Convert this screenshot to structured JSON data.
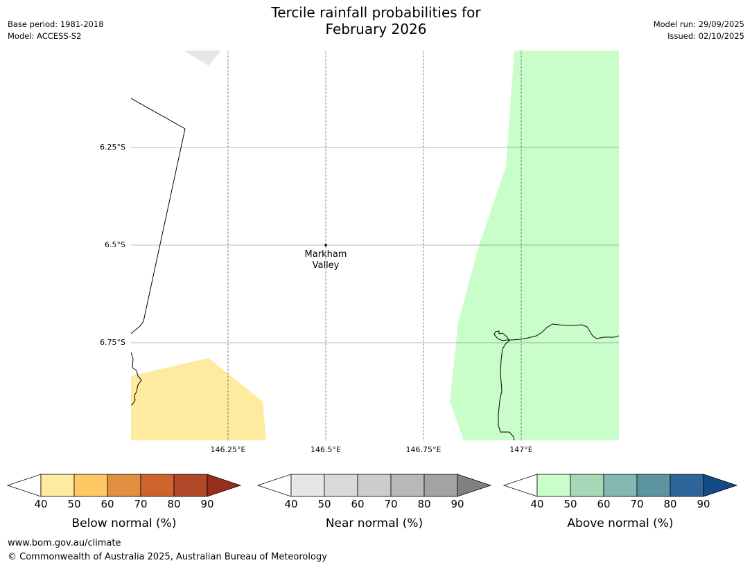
{
  "title": {
    "line1": "Tercile rainfall probabilities for",
    "line2": "February 2026"
  },
  "meta_left": {
    "base_period": "Base period: 1981-2018",
    "model": "Model: ACCESS-S2"
  },
  "meta_right": {
    "model_run": "Model run: 29/09/2025",
    "issued": "Issued: 02/10/2025"
  },
  "map": {
    "lat_ticks": [
      "6.25°S",
      "6.5°S",
      "6.75°S"
    ],
    "lon_ticks": [
      "146.25°E",
      "146.5°E",
      "146.75°E",
      "147°E"
    ],
    "place": {
      "name_line1": "Markham",
      "name_line2": "Valley"
    },
    "colors": {
      "below_normal_fill": "#feeb9f",
      "above_normal_fill": "#c9fdca",
      "near_normal_fill": "#e6e6e6"
    }
  },
  "colorbars": [
    {
      "label": "Below normal (%)",
      "ticks": [
        "40",
        "50",
        "60",
        "70",
        "80",
        "90"
      ],
      "colors": [
        "#ffffff",
        "#feeb9f",
        "#fec965",
        "#e18f41",
        "#ce632e",
        "#b04728",
        "#962e1e"
      ]
    },
    {
      "label": "Near normal (%)",
      "ticks": [
        "40",
        "50",
        "60",
        "70",
        "80",
        "90"
      ],
      "colors": [
        "#ffffff",
        "#e6e6e6",
        "#d9d9d9",
        "#cccccc",
        "#b8b8b8",
        "#a3a3a3",
        "#808080"
      ]
    },
    {
      "label": "Above normal (%)",
      "ticks": [
        "40",
        "50",
        "60",
        "70",
        "80",
        "90"
      ],
      "colors": [
        "#ffffff",
        "#c9fdca",
        "#a6d8b8",
        "#83b9b0",
        "#5c94a0",
        "#2f6699",
        "#154b84"
      ]
    }
  ],
  "footer": {
    "url": "www.bom.gov.au/climate",
    "copyright": "© Commonwealth of Australia 2025, Australian Bureau of Meteorology"
  }
}
